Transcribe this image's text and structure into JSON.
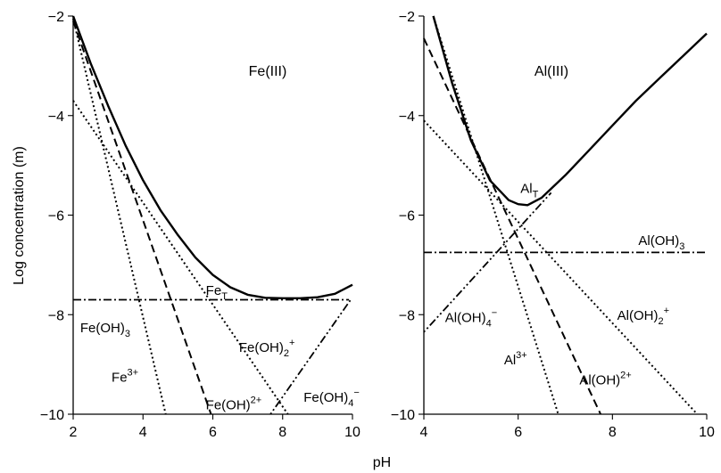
{
  "chart_data": [
    {
      "type": "line",
      "panel_title": "Fe(III)",
      "xlim": [
        2,
        10
      ],
      "ylim": [
        -10,
        -2
      ],
      "xticks": [
        2,
        4,
        6,
        8,
        10
      ],
      "yticks": [
        -10,
        -8,
        -6,
        -4,
        -2
      ],
      "ylabel": "Log concentration (m)",
      "series": [
        {
          "name": "Fe_T",
          "style": "solid",
          "x": [
            2.0,
            2.5,
            3.0,
            3.5,
            4.0,
            4.5,
            5.0,
            5.5,
            6.0,
            6.5,
            7.0,
            7.5,
            8.0,
            8.5,
            9.0,
            9.5,
            10.0
          ],
          "y": [
            -2.0,
            -2.95,
            -3.8,
            -4.6,
            -5.3,
            -5.9,
            -6.4,
            -6.85,
            -7.2,
            -7.45,
            -7.6,
            -7.66,
            -7.67,
            -7.67,
            -7.65,
            -7.58,
            -7.4
          ]
        },
        {
          "name": "Fe3+",
          "style": "dotted",
          "x": [
            2.0,
            4.65
          ],
          "y": [
            -2.05,
            -10.0
          ]
        },
        {
          "name": "Fe(OH)2+",
          "style": "dashed",
          "x": [
            2.0,
            5.95
          ],
          "y": [
            -2.1,
            -10.0
          ]
        },
        {
          "name": "Fe(OH)2+ (dihydroxo)",
          "style": "dotted",
          "x": [
            2.0,
            8.15
          ],
          "y": [
            -3.7,
            -10.0
          ]
        },
        {
          "name": "Fe(OH)3",
          "style": "dashdot",
          "x": [
            2.0,
            9.9
          ],
          "y": [
            -7.7,
            -7.7
          ]
        },
        {
          "name": "Fe(OH)4-",
          "style": "dashdotdot",
          "x": [
            7.65,
            9.95
          ],
          "y": [
            -10.0,
            -7.7
          ]
        }
      ],
      "labels": [
        {
          "id": "fe_t",
          "x": 5.8,
          "y": -7.6
        },
        {
          "id": "fe_oh3",
          "x": 2.2,
          "y": -8.35
        },
        {
          "id": "fe_oh2p",
          "x": 6.75,
          "y": -8.75
        },
        {
          "id": "fe3p",
          "x": 3.1,
          "y": -9.35
        },
        {
          "id": "fe_oh2pp",
          "x": 5.8,
          "y": -9.9
        },
        {
          "id": "fe_oh4m",
          "x": 8.6,
          "y": -9.75
        }
      ]
    },
    {
      "type": "line",
      "panel_title": "Al(III)",
      "xlim": [
        4,
        10
      ],
      "ylim": [
        -10,
        -2
      ],
      "xticks": [
        4,
        6,
        8,
        10
      ],
      "yticks": [
        -10,
        -8,
        -6,
        -4,
        -2
      ],
      "series": [
        {
          "name": "Al_T",
          "style": "solid",
          "x": [
            4.2,
            4.6,
            5.0,
            5.4,
            5.8,
            6.0,
            6.2,
            6.5,
            7.0,
            7.5,
            8.0,
            8.5,
            9.0,
            9.5,
            10.0
          ],
          "y": [
            -2.0,
            -3.35,
            -4.5,
            -5.3,
            -5.7,
            -5.78,
            -5.8,
            -5.65,
            -5.2,
            -4.7,
            -4.2,
            -3.7,
            -3.25,
            -2.8,
            -2.35
          ]
        },
        {
          "name": "Al3+",
          "style": "dotted",
          "x": [
            4.2,
            6.85
          ],
          "y": [
            -2.0,
            -10.0
          ]
        },
        {
          "name": "Al(OH)2+",
          "style": "dashed",
          "x": [
            4.0,
            7.75
          ],
          "y": [
            -2.45,
            -10.0
          ]
        },
        {
          "name": "Al(OH)2+ (dihydroxo)",
          "style": "dotted",
          "x": [
            4.0,
            9.8
          ],
          "y": [
            -4.1,
            -10.0
          ]
        },
        {
          "name": "Al(OH)3",
          "style": "dashdot",
          "x": [
            4.0,
            10.0
          ],
          "y": [
            -6.75,
            -6.75
          ]
        },
        {
          "name": "Al(OH)4-",
          "style": "dashdotdot",
          "x": [
            4.0,
            6.7
          ],
          "y": [
            -8.35,
            -5.55
          ]
        }
      ],
      "labels": [
        {
          "id": "al_t",
          "x": 6.05,
          "y": -5.55
        },
        {
          "id": "al_oh3",
          "x": 8.55,
          "y": -6.6
        },
        {
          "id": "al_oh4m",
          "x": 4.45,
          "y": -8.15
        },
        {
          "id": "al_oh2p",
          "x": 8.1,
          "y": -8.1
        },
        {
          "id": "al3p",
          "x": 5.7,
          "y": -9.0
        },
        {
          "id": "al_oh2pp",
          "x": 7.3,
          "y": -9.4
        }
      ]
    }
  ],
  "shared_xlabel": "pH",
  "text": {
    "fe_t_main": "Fe",
    "fe_t_sub": "T",
    "fe_oh3_main": "Fe(OH)",
    "fe_oh3_sub": "3",
    "fe_oh2p_main": "Fe(OH)",
    "fe_oh2p_sub": "2",
    "fe_oh2p_sup": "+",
    "fe3p_main": "Fe",
    "fe3p_sup": "3+",
    "fe_oh2pp_main": "Fe(OH)",
    "fe_oh2pp_sup": "2+",
    "fe_oh4m_main": "Fe(OH)",
    "fe_oh4m_sub": "4",
    "fe_oh4m_sup": "−",
    "al_t_main": "Al",
    "al_t_sub": "T",
    "al_oh3_main": "Al(OH)",
    "al_oh3_sub": "3",
    "al_oh4m_main": "Al(OH)",
    "al_oh4m_sub": "4",
    "al_oh4m_sup": "−",
    "al_oh2p_main": "Al(OH)",
    "al_oh2p_sub": "2",
    "al_oh2p_sup": "+",
    "al3p_main": "Al",
    "al3p_sup": "3+",
    "al_oh2pp_main": "Al(OH)",
    "al_oh2pp_sup": "2+"
  }
}
